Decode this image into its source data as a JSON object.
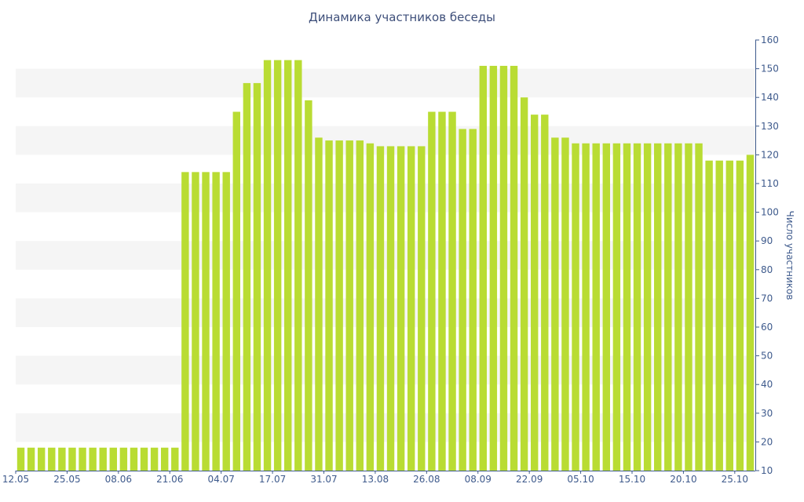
{
  "chart_data": {
    "type": "bar",
    "title": "Динамика участников беседы",
    "xlabel": "",
    "ylabel": "Число участников",
    "ylim": [
      10,
      160
    ],
    "y_ticks": [
      10,
      20,
      30,
      40,
      50,
      60,
      70,
      80,
      90,
      100,
      110,
      120,
      130,
      140,
      150,
      160
    ],
    "y_axis_side": "right",
    "grid": "alternating horizontal bands",
    "x_tick_labels": [
      {
        "label": "12.05",
        "index": 0
      },
      {
        "label": "25.05",
        "index": 5
      },
      {
        "label": "08.06",
        "index": 10
      },
      {
        "label": "21.06",
        "index": 15
      },
      {
        "label": "04.07",
        "index": 20
      },
      {
        "label": "17.07",
        "index": 25
      },
      {
        "label": "31.07",
        "index": 30
      },
      {
        "label": "13.08",
        "index": 35
      },
      {
        "label": "26.08",
        "index": 40
      },
      {
        "label": "08.09",
        "index": 45
      },
      {
        "label": "22.09",
        "index": 50
      },
      {
        "label": "05.10",
        "index": 55
      },
      {
        "label": "15.10",
        "index": 60
      },
      {
        "label": "20.10",
        "index": 65
      },
      {
        "label": "25.10",
        "index": 70
      }
    ],
    "values": [
      18,
      18,
      18,
      18,
      18,
      18,
      18,
      18,
      18,
      18,
      18,
      18,
      18,
      18,
      18,
      18,
      114,
      114,
      114,
      114,
      114,
      135,
      145,
      145,
      153,
      153,
      153,
      153,
      139,
      126,
      125,
      125,
      125,
      125,
      124,
      123,
      123,
      123,
      123,
      123,
      135,
      135,
      135,
      129,
      129,
      151,
      151,
      151,
      151,
      140,
      134,
      134,
      126,
      126,
      124,
      124,
      124,
      124,
      124,
      124,
      124,
      124,
      124,
      124,
      124,
      124,
      124,
      118,
      118,
      118,
      118,
      120
    ],
    "colors": {
      "bar": "#b9dc33",
      "band": "#f5f5f5",
      "axis": "#3e5a8c",
      "text": "#3e5a8c"
    }
  }
}
